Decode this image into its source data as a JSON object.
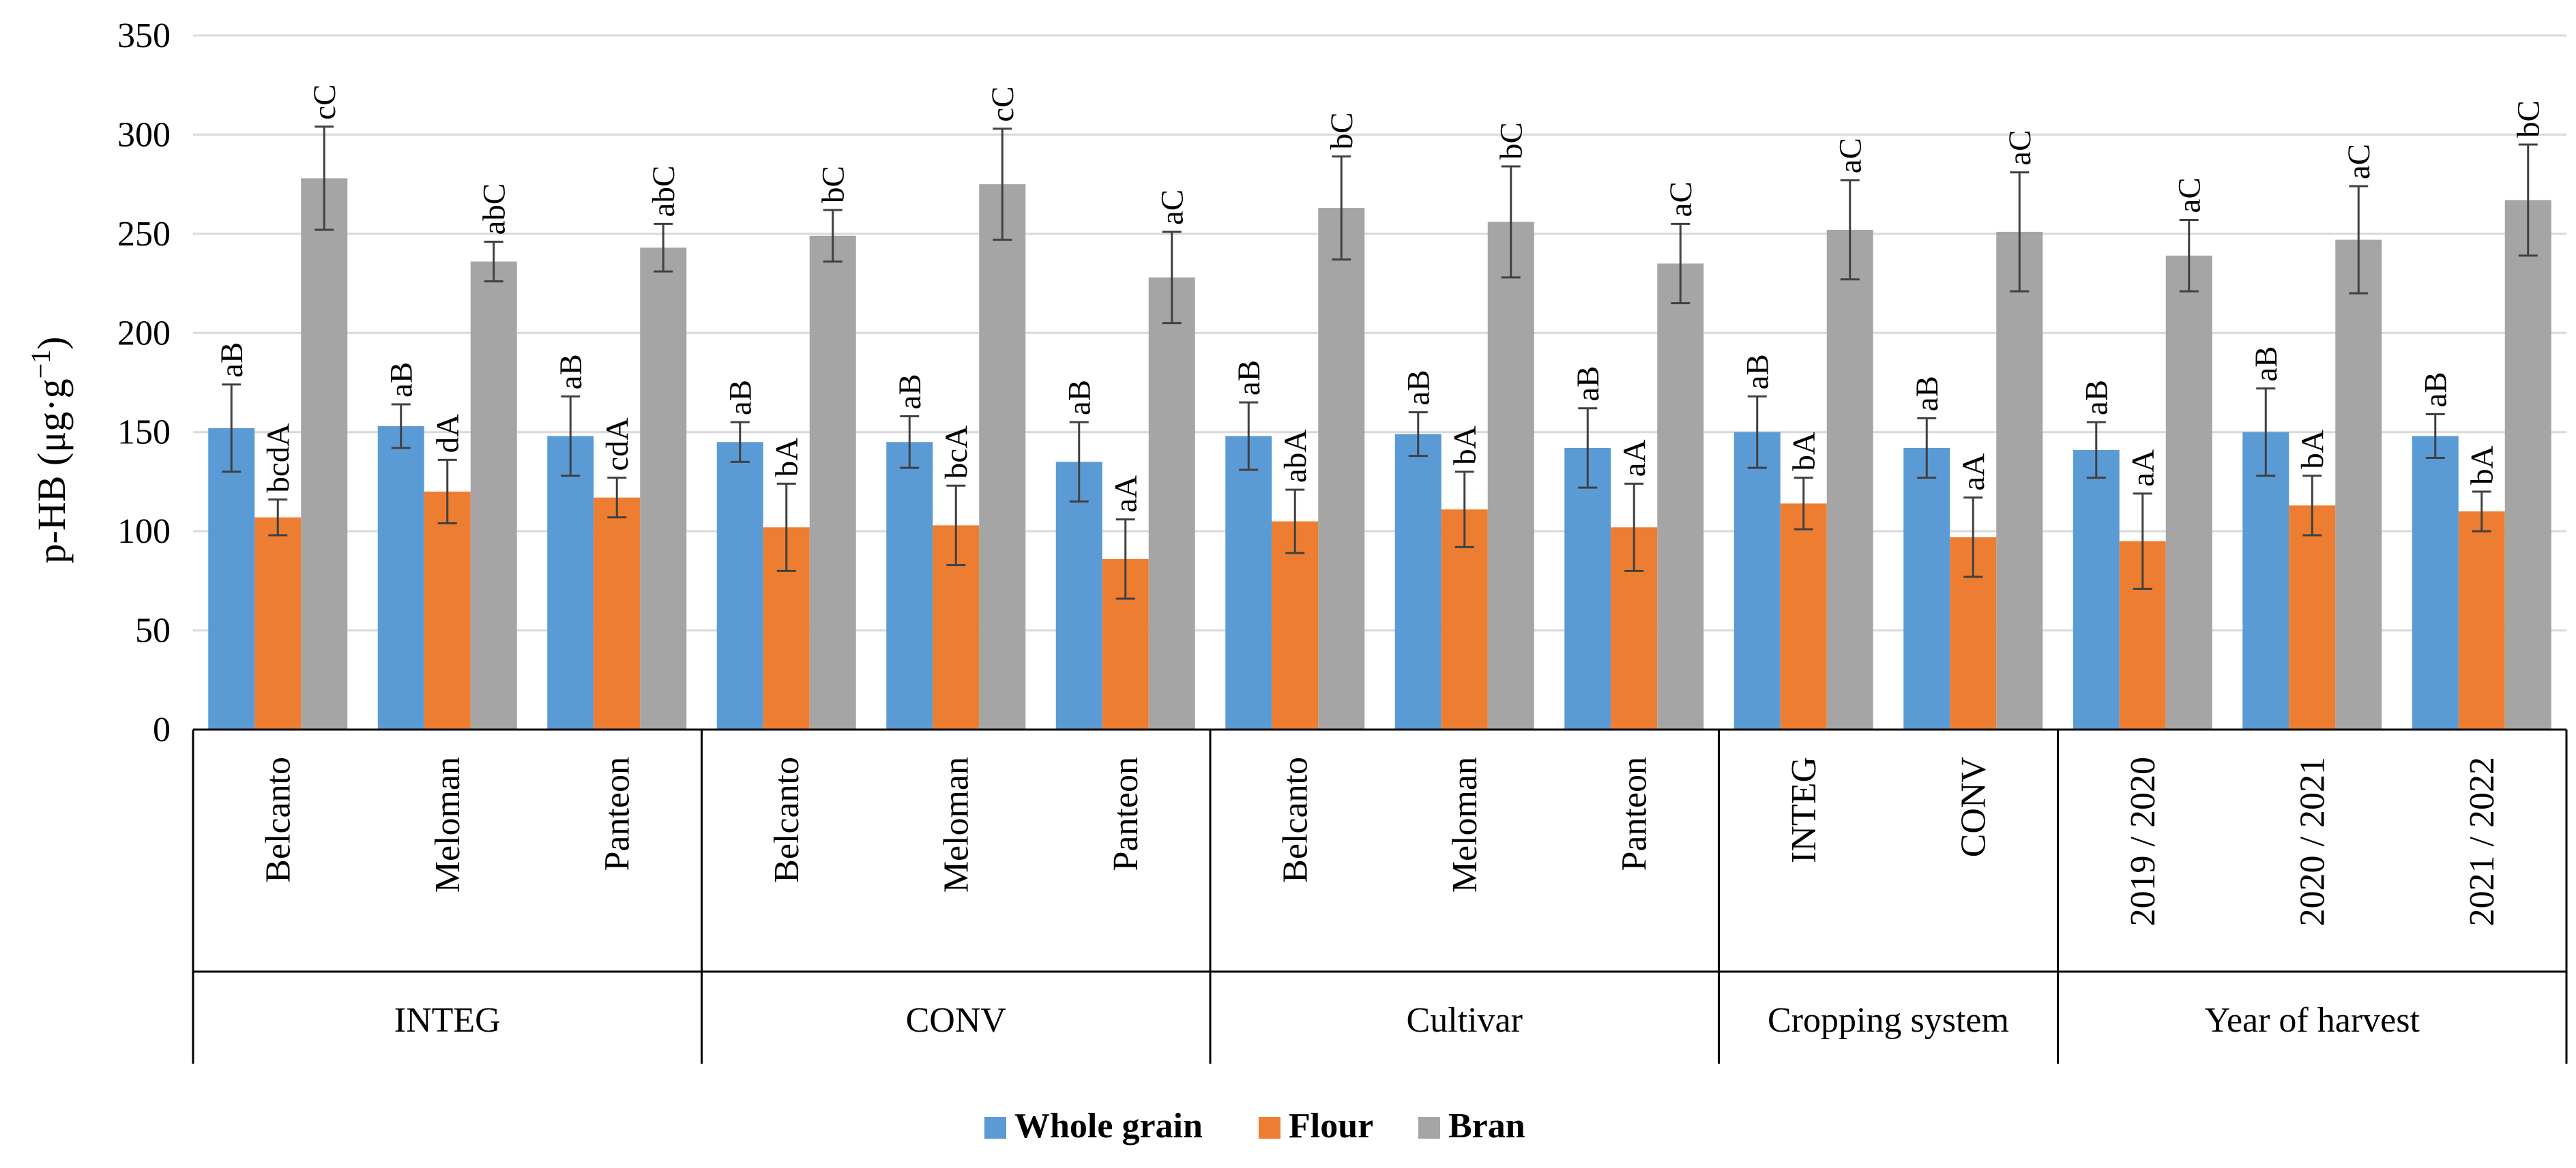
{
  "chart_data": {
    "type": "bar",
    "title": "",
    "ylabel": "p-HB (μg·g",
    "ylabel_sup": "−1",
    "ylabel_close": ")",
    "ylim": [
      0,
      350
    ],
    "yticks": [
      0,
      50,
      100,
      150,
      200,
      250,
      300,
      350
    ],
    "grid": true,
    "legend_position": "bottom-center",
    "colors": {
      "Whole grain": "#5b9bd5",
      "Flour": "#ed7d31",
      "Bran": "#a5a5a5"
    },
    "series": [
      {
        "name": "Whole grain",
        "values": [
          152,
          153,
          148,
          145,
          145,
          135,
          148,
          149,
          142,
          150,
          142,
          141,
          150,
          148
        ],
        "errors": [
          22,
          11,
          20,
          10,
          13,
          20,
          17,
          11,
          20,
          18,
          15,
          14,
          22,
          11
        ]
      },
      {
        "name": "Flour",
        "values": [
          107,
          120,
          117,
          102,
          103,
          86,
          105,
          111,
          102,
          114,
          97,
          95,
          113,
          110
        ],
        "errors": [
          9,
          16,
          10,
          22,
          20,
          20,
          16,
          19,
          22,
          13,
          20,
          24,
          15,
          10
        ]
      },
      {
        "name": "Bran",
        "values": [
          278,
          236,
          243,
          249,
          275,
          228,
          263,
          256,
          235,
          252,
          251,
          239,
          247,
          267
        ],
        "errors": [
          26,
          10,
          12,
          13,
          28,
          23,
          26,
          28,
          20,
          25,
          30,
          18,
          27,
          28
        ]
      }
    ],
    "categories": [
      "Belcanto",
      "Meloman",
      "Panteon",
      "Belcanto",
      "Meloman",
      "Panteon",
      "Belcanto",
      "Meloman",
      "Panteon",
      "INTEG",
      "CONV",
      "2019 / 2020",
      "2020 / 2021",
      "2021 / 2022"
    ],
    "groups": [
      {
        "label": "INTEG",
        "start": 0,
        "count": 3
      },
      {
        "label": "CONV",
        "start": 3,
        "count": 3
      },
      {
        "label": "Cultivar",
        "start": 6,
        "count": 3
      },
      {
        "label": "Cropping system",
        "start": 9,
        "count": 2
      },
      {
        "label": "Year of harvest",
        "start": 11,
        "count": 3
      }
    ],
    "annotations": [
      [
        "aB",
        "bcdA",
        "cC"
      ],
      [
        "aB",
        "dA",
        "abC"
      ],
      [
        "aB",
        "cdA",
        "abC"
      ],
      [
        "aB",
        "bA",
        "bC"
      ],
      [
        "aB",
        "bcA",
        "cC"
      ],
      [
        "aB",
        "aA",
        "aC"
      ],
      [
        "aB",
        "abA",
        "bC"
      ],
      [
        "aB",
        "bA",
        "bC"
      ],
      [
        "aB",
        "aA",
        "aC"
      ],
      [
        "aB",
        "bA",
        "aC"
      ],
      [
        "aB",
        "aA",
        "aC"
      ],
      [
        "aB",
        "aA",
        "aC"
      ],
      [
        "aB",
        "bA",
        "aC"
      ],
      [
        "aB",
        "bA",
        "bC"
      ]
    ]
  }
}
